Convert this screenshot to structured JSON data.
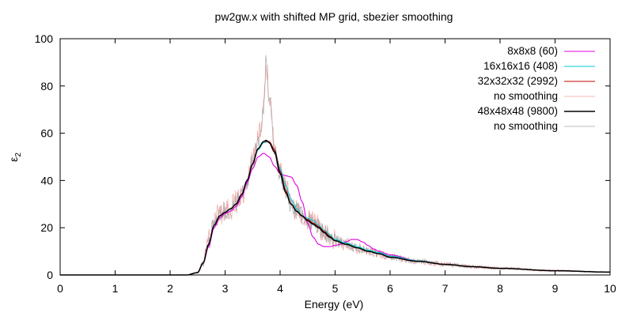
{
  "chart_data": {
    "type": "line",
    "title": "pw2gw.x with shifted MP grid, sbezier smoothing",
    "xlabel": "Energy (eV)",
    "ylabel": "ε",
    "ylabel_subscript": "2",
    "xlim": [
      0,
      10
    ],
    "ylim": [
      0,
      100
    ],
    "xticks": [
      0,
      1,
      2,
      3,
      4,
      5,
      6,
      7,
      8,
      9,
      10
    ],
    "yticks": [
      0,
      20,
      40,
      60,
      80,
      100
    ],
    "grid": false,
    "legend_position": "top-right",
    "series": [
      {
        "name": "8x8x8 (60)",
        "color": "#e000e0",
        "style": "smooth",
        "x": [
          0,
          2.3,
          2.5,
          2.6,
          2.7,
          2.8,
          2.9,
          3.0,
          3.1,
          3.2,
          3.3,
          3.4,
          3.5,
          3.6,
          3.7,
          3.8,
          3.9,
          4.0,
          4.1,
          4.2,
          4.3,
          4.4,
          4.5,
          4.6,
          4.7,
          4.8,
          4.9,
          5.0,
          5.1,
          5.2,
          5.3,
          5.4,
          5.5,
          5.6,
          5.7,
          5.8,
          6.0,
          6.5,
          7.0,
          7.5,
          8.0,
          9.0,
          10.0
        ],
        "y": [
          0,
          0,
          1,
          5,
          12,
          20,
          24,
          26,
          27,
          29,
          33,
          39,
          45,
          50,
          51.5,
          50,
          46,
          43,
          42,
          41.5,
          38,
          31,
          22,
          16,
          13,
          12,
          12,
          12.5,
          13,
          14,
          15,
          15,
          14,
          12.5,
          11,
          10,
          8.5,
          6,
          4.5,
          3.5,
          2.8,
          1.8,
          1.2
        ]
      },
      {
        "name": "16x16x16 (408)",
        "color": "#00c8d0",
        "style": "smooth",
        "x": [
          0,
          2.3,
          2.5,
          2.6,
          2.7,
          2.8,
          2.9,
          3.0,
          3.1,
          3.2,
          3.3,
          3.4,
          3.5,
          3.6,
          3.7,
          3.8,
          3.9,
          4.0,
          4.1,
          4.2,
          4.3,
          4.4,
          4.5,
          4.6,
          4.7,
          4.8,
          4.9,
          5.0,
          5.2,
          5.4,
          5.6,
          5.8,
          6.0,
          6.5,
          7.0,
          7.5,
          8.0,
          9.0,
          10.0
        ],
        "y": [
          0,
          0,
          1,
          5,
          13,
          21,
          25,
          26.5,
          28,
          30,
          34,
          40,
          47,
          53,
          56,
          56.5,
          53,
          45,
          38,
          32,
          28,
          25,
          24,
          23,
          21,
          19,
          17,
          15,
          13.5,
          12,
          10.5,
          9.5,
          8,
          6,
          4.5,
          3.5,
          2.8,
          1.8,
          1.2
        ]
      },
      {
        "name": "32x32x32 (2992)",
        "color": "#c00000",
        "style": "smooth",
        "x": [
          0,
          2.3,
          2.5,
          2.6,
          2.7,
          2.8,
          2.9,
          3.0,
          3.1,
          3.2,
          3.3,
          3.4,
          3.5,
          3.6,
          3.7,
          3.8,
          3.9,
          4.0,
          4.1,
          4.2,
          4.3,
          4.4,
          4.5,
          4.6,
          4.7,
          4.8,
          4.9,
          5.0,
          5.2,
          5.4,
          5.6,
          5.8,
          6.0,
          6.5,
          7.0,
          7.5,
          8.0,
          9.0,
          10.0
        ],
        "y": [
          0,
          0,
          1,
          5,
          13,
          21,
          25,
          26.5,
          28,
          30,
          34,
          40,
          47,
          53.5,
          56.5,
          56.5,
          53,
          44,
          36,
          30,
          27,
          25,
          23.5,
          22,
          20.5,
          18.5,
          16.5,
          14.5,
          13,
          11.5,
          10,
          9,
          7.5,
          5.8,
          4.5,
          3.5,
          2.8,
          1.8,
          1.2
        ]
      },
      {
        "name": "no smoothing",
        "color": "#f4a0a0",
        "style": "noisy",
        "noise": 5,
        "x": [
          0,
          2.3,
          2.5,
          2.6,
          2.7,
          2.8,
          2.9,
          3.0,
          3.1,
          3.2,
          3.3,
          3.4,
          3.5,
          3.6,
          3.7,
          3.75,
          3.8,
          3.9,
          4.0,
          4.1,
          4.2,
          4.3,
          4.4,
          4.5,
          4.6,
          4.7,
          4.8,
          4.9,
          5.0,
          5.2,
          5.4,
          5.6,
          5.8,
          6.0,
          6.5,
          7.0,
          7.5,
          8.0,
          9.0,
          10.0
        ],
        "y": [
          0,
          0,
          1,
          5,
          15,
          24,
          26,
          27,
          28,
          31,
          34,
          40,
          48,
          58,
          70,
          88,
          75,
          55,
          44,
          37,
          31,
          27,
          26,
          24,
          22,
          20.5,
          18.5,
          16.5,
          14.5,
          13,
          11.5,
          10,
          9,
          7.5,
          5.8,
          4.5,
          3.5,
          2.8,
          1.8,
          1.2
        ]
      },
      {
        "name": "48x48x48 (9800)",
        "color": "#000000",
        "style": "smooth",
        "x": [
          0,
          2.3,
          2.5,
          2.6,
          2.7,
          2.8,
          2.9,
          3.0,
          3.1,
          3.2,
          3.3,
          3.4,
          3.5,
          3.6,
          3.7,
          3.75,
          3.8,
          3.9,
          4.0,
          4.1,
          4.2,
          4.3,
          4.4,
          4.5,
          4.6,
          4.7,
          4.8,
          4.9,
          5.0,
          5.2,
          5.4,
          5.6,
          5.8,
          6.0,
          6.5,
          7.0,
          7.5,
          8.0,
          9.0,
          10.0
        ],
        "y": [
          0,
          0,
          1,
          5,
          13,
          21,
          25,
          26.5,
          28,
          30,
          34,
          40,
          47,
          53.5,
          56.5,
          57,
          56,
          52,
          43,
          35,
          30,
          27,
          25,
          23,
          21.5,
          20,
          18,
          16,
          14.5,
          13,
          11.5,
          10,
          9,
          7.5,
          5.8,
          4.5,
          3.5,
          2.8,
          1.8,
          1.2
        ]
      },
      {
        "name": "no smoothing",
        "color": "#a8a8a8",
        "style": "noisy",
        "noise": 4,
        "x": [
          0,
          2.3,
          2.5,
          2.6,
          2.7,
          2.8,
          2.9,
          3.0,
          3.1,
          3.2,
          3.3,
          3.4,
          3.5,
          3.6,
          3.7,
          3.75,
          3.8,
          3.9,
          4.0,
          4.1,
          4.2,
          4.3,
          4.4,
          4.5,
          4.6,
          4.7,
          4.8,
          4.9,
          5.0,
          5.2,
          5.4,
          5.6,
          5.8,
          6.0,
          6.5,
          7.0,
          7.5,
          8.0,
          9.0,
          10.0
        ],
        "y": [
          0,
          0,
          1,
          5,
          14,
          23,
          25.5,
          27,
          28,
          31,
          34,
          40,
          48,
          57,
          68,
          92,
          74,
          54,
          43,
          36,
          30,
          27,
          25.5,
          23.5,
          21.5,
          20,
          18,
          16,
          14.5,
          13,
          11.5,
          10,
          9,
          7.5,
          5.8,
          4.5,
          3.5,
          2.8,
          1.8,
          1.2
        ]
      }
    ]
  }
}
